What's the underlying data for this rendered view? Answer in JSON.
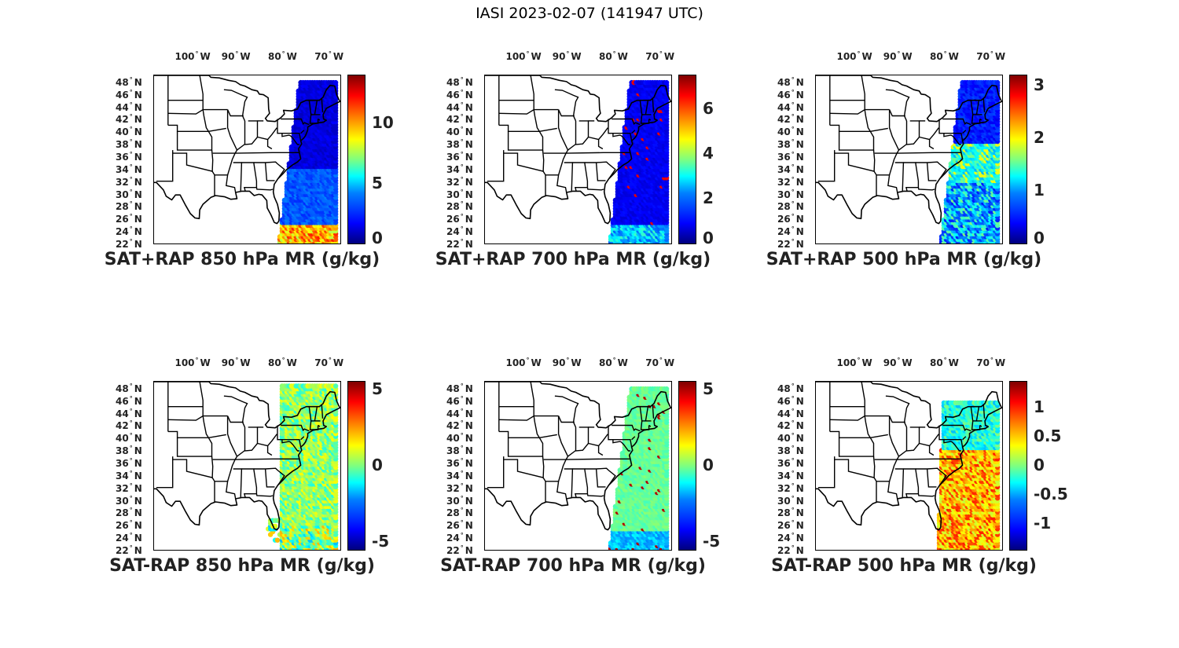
{
  "figure": {
    "title": "IASI 2023-02-07 (141947 UTC)"
  },
  "lon_labels": [
    "100",
    "90",
    "80",
    "70"
  ],
  "lon_suffix": "W",
  "lat_labels": [
    "48",
    "46",
    "44",
    "42",
    "40",
    "38",
    "36",
    "34",
    "32",
    "30",
    "28",
    "26",
    "24",
    "22"
  ],
  "lat_suffix": "N",
  "degree_symbol": "°",
  "colormap": "jet",
  "colors": {
    "frame": "#000000",
    "map_outline": "#000000",
    "background": "#ffffff"
  },
  "panels": [
    {
      "id": "sat-rap-sum-850",
      "title": "SAT+RAP 850 hPa MR (g/kg)",
      "colorbar": {
        "min": 0,
        "max": 14,
        "ticks": [
          "0",
          "5",
          "10"
        ],
        "tick_values": [
          0,
          5,
          10
        ]
      }
    },
    {
      "id": "sat-rap-sum-700",
      "title": "SAT+RAP 700 hPa MR (g/kg)",
      "colorbar": {
        "min": 0,
        "max": 7.5,
        "ticks": [
          "0",
          "2",
          "4",
          "6"
        ],
        "tick_values": [
          0,
          2,
          4,
          6
        ]
      }
    },
    {
      "id": "sat-rap-sum-500",
      "title": "SAT+RAP 500 hPa MR (g/kg)",
      "colorbar": {
        "min": 0,
        "max": 3.2,
        "ticks": [
          "0",
          "1",
          "2",
          "3"
        ],
        "tick_values": [
          0,
          1,
          2,
          3
        ]
      }
    },
    {
      "id": "sat-rap-diff-850",
      "title": "SAT-RAP 850 hPa MR (g/kg)",
      "colorbar": {
        "min": -5.5,
        "max": 5.5,
        "ticks": [
          "-5",
          "0",
          "5"
        ],
        "tick_values": [
          -5,
          0,
          5
        ]
      }
    },
    {
      "id": "sat-rap-diff-700",
      "title": "SAT-RAP 700 hPa MR (g/kg)",
      "colorbar": {
        "min": -5.5,
        "max": 5.5,
        "ticks": [
          "-5",
          "0",
          "5"
        ],
        "tick_values": [
          -5,
          0,
          5
        ]
      }
    },
    {
      "id": "sat-rap-diff-500",
      "title": "SAT-RAP 500 hPa MR (g/kg)",
      "colorbar": {
        "min": -1.45,
        "max": 1.45,
        "ticks": [
          "-1",
          "-0.5",
          "0",
          "0.5",
          "1"
        ],
        "tick_values": [
          -1,
          -0.5,
          0,
          0.5,
          1
        ]
      }
    }
  ]
}
